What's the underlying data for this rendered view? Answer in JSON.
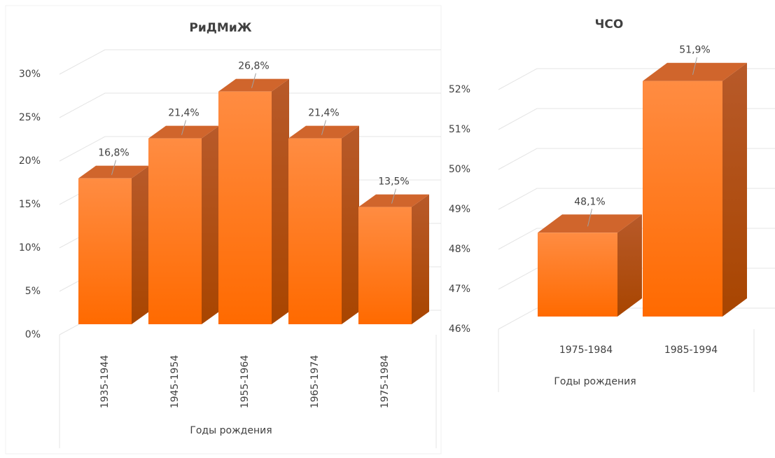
{
  "chart_data": [
    {
      "type": "bar3d",
      "title": "РиДМиЖ",
      "x_label": "Годы рождения",
      "categories": [
        "1935-1944",
        "1945-1954",
        "1955-1964",
        "1965-1974",
        "1975-1984"
      ],
      "values": [
        16.8,
        21.4,
        26.8,
        21.4,
        13.5
      ],
      "value_labels": [
        "16,8%",
        "21,4%",
        "26,8%",
        "21,4%",
        "13,5%"
      ],
      "color": "#ff7a1a",
      "ylim": [
        0,
        30
      ],
      "yticks": [
        {
          "value": 0,
          "label": "0%"
        },
        {
          "value": 5,
          "label": "5%"
        },
        {
          "value": 10,
          "label": "10%"
        },
        {
          "value": 15,
          "label": "15%"
        },
        {
          "value": 20,
          "label": "20%"
        },
        {
          "value": 25,
          "label": "25%"
        },
        {
          "value": 30,
          "label": "30%"
        }
      ],
      "grid": true
    },
    {
      "type": "bar3d",
      "title": "ЧСО",
      "x_label": "Годы рождения",
      "categories": [
        "1975-1984",
        "1985-1994"
      ],
      "values": [
        48.1,
        51.9
      ],
      "value_labels": [
        "48,1%",
        "51,9%"
      ],
      "color": "#ff7a1a",
      "ylim": [
        46,
        52
      ],
      "yticks": [
        {
          "value": 46,
          "label": "46%"
        },
        {
          "value": 47,
          "label": "47%"
        },
        {
          "value": 48,
          "label": "48%"
        },
        {
          "value": 49,
          "label": "49%"
        },
        {
          "value": 50,
          "label": "50%"
        },
        {
          "value": 51,
          "label": "51%"
        },
        {
          "value": 52,
          "label": "52%"
        }
      ],
      "grid": true
    }
  ]
}
